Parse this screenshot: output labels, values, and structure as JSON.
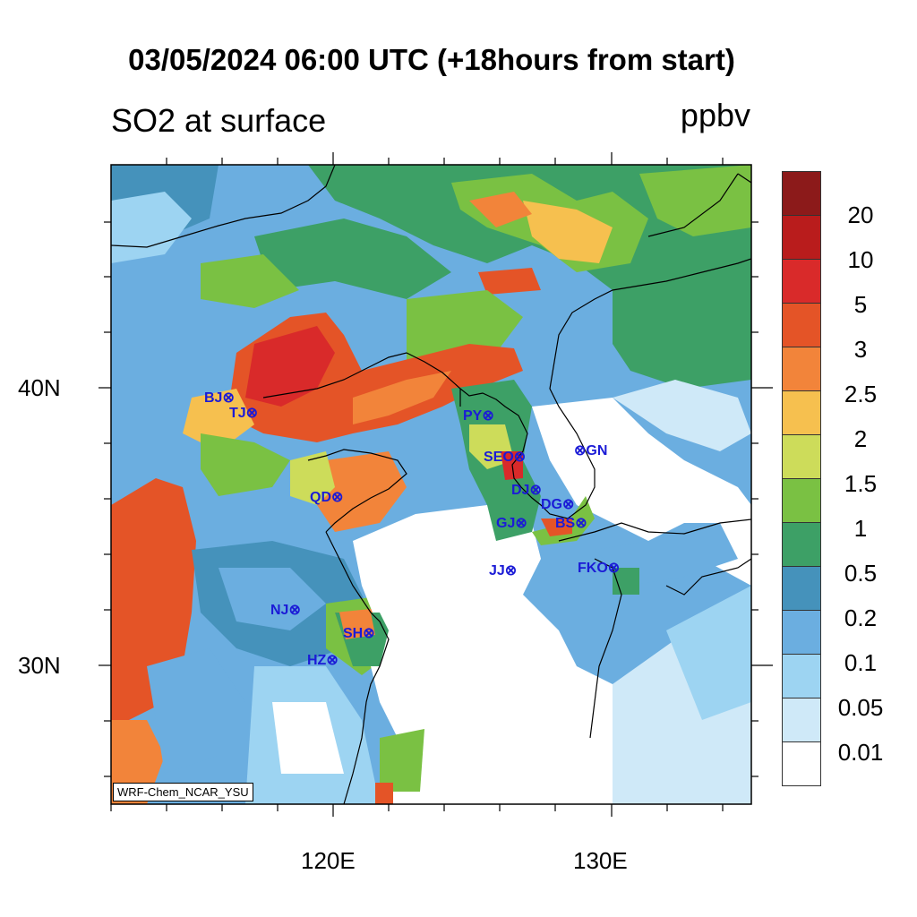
{
  "title": "03/05/2024 06:00 UTC (+18hours from start)",
  "subtitle_left": "SO2 at surface",
  "subtitle_right": "ppbv",
  "footer_tag": "WRF-Chem_NCAR_YSU",
  "axes": {
    "lat_labels": [
      "40N",
      "30N"
    ],
    "lon_labels": [
      "120E",
      "130E"
    ]
  },
  "legend": {
    "colors": [
      "#8c1a1a",
      "#b91c1c",
      "#d92a2a",
      "#e45427",
      "#f2843a",
      "#f6c04f",
      "#cddc5a",
      "#7ac143",
      "#3da066",
      "#4592bb",
      "#6baee0",
      "#9dd4f2",
      "#cfe9f8",
      "#ffffff"
    ],
    "labels": [
      "20",
      "10",
      "5",
      "3",
      "2.5",
      "2",
      "1.5",
      "1",
      "0.5",
      "0.2",
      "0.1",
      "0.05",
      "0.01"
    ]
  },
  "cities": [
    {
      "name": "BJ",
      "label": "BJ⊗"
    },
    {
      "name": "TJ",
      "label": "TJ⊗"
    },
    {
      "name": "PY",
      "label": "PY⊗"
    },
    {
      "name": "SEO",
      "label": "SEO⊗"
    },
    {
      "name": "GN",
      "label": "⊗GN"
    },
    {
      "name": "QD",
      "label": "QD⊗"
    },
    {
      "name": "DJ",
      "label": "DJ⊗"
    },
    {
      "name": "DG",
      "label": "DG⊗"
    },
    {
      "name": "GJ",
      "label": "GJ⊗"
    },
    {
      "name": "BS",
      "label": "BS⊗"
    },
    {
      "name": "JJ",
      "label": "JJ⊗"
    },
    {
      "name": "FKO",
      "label": "FKO⊗"
    },
    {
      "name": "NJ",
      "label": "NJ⊗"
    },
    {
      "name": "SH",
      "label": "SH⊗"
    },
    {
      "name": "HZ",
      "label": "HZ⊗"
    }
  ]
}
